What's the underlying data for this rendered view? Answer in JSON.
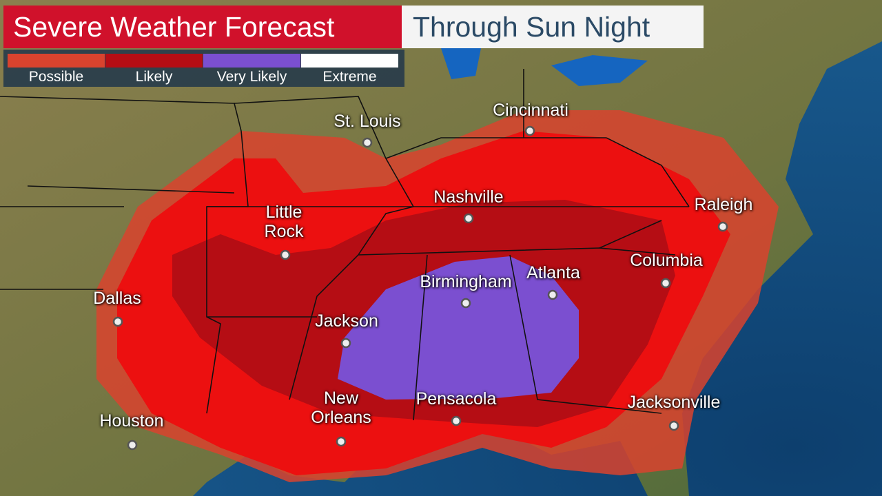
{
  "header": {
    "title": "Severe Weather Forecast",
    "subtitle": "Through Sun Night"
  },
  "legend": {
    "items": [
      {
        "label": "Possible",
        "color": "#d9432e"
      },
      {
        "label": "Likely",
        "color": "#b50d14"
      },
      {
        "label": "Very Likely",
        "color": "#7b4fd0"
      },
      {
        "label": "Extreme",
        "color": "#ffffff"
      }
    ]
  },
  "cities": [
    {
      "name": "St. Louis"
    },
    {
      "name": "Cincinnati"
    },
    {
      "name": "Nashville"
    },
    {
      "name": "Little Rock"
    },
    {
      "name": "Raleigh"
    },
    {
      "name": "Columbia"
    },
    {
      "name": "Atlanta"
    },
    {
      "name": "Birmingham"
    },
    {
      "name": "Dallas"
    },
    {
      "name": "Jackson"
    },
    {
      "name": "New Orleans"
    },
    {
      "name": "Pensacola"
    },
    {
      "name": "Jacksonville"
    },
    {
      "name": "Houston"
    }
  ]
}
